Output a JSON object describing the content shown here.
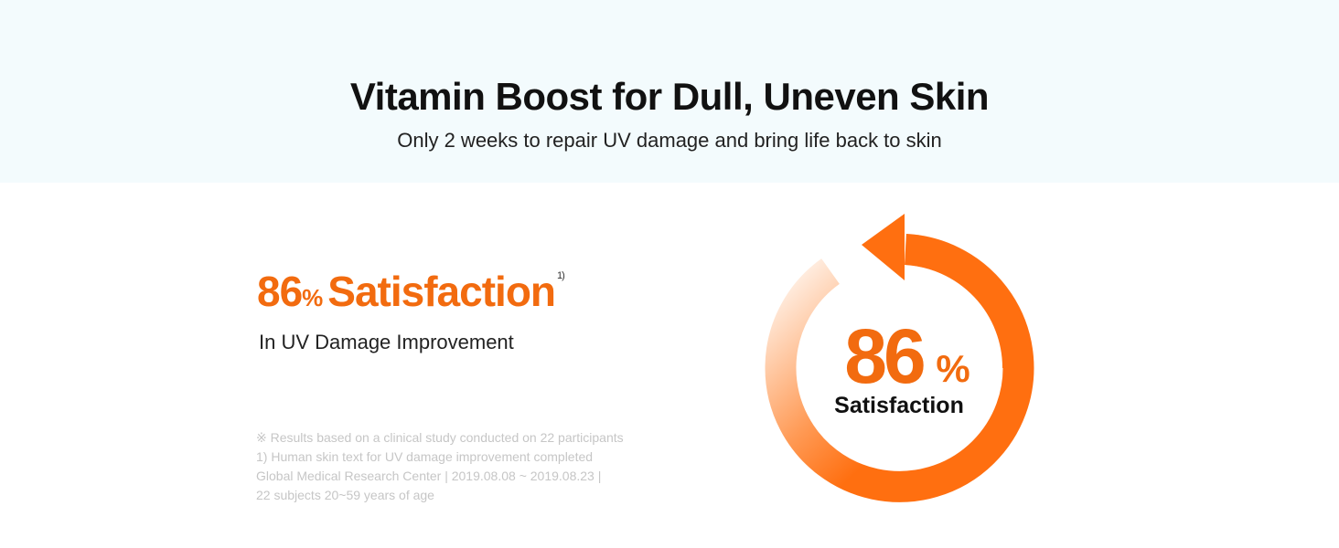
{
  "header": {
    "title": "Vitamin Boost for Dull, Uneven Skin",
    "subtitle": "Only 2 weeks to repair UV damage and bring life back to skin"
  },
  "stat": {
    "value": "86",
    "unit": "%",
    "label": "Satisfaction",
    "footnote_ref": "1)",
    "description": "In UV Damage Improvement"
  },
  "notes": [
    "※ Results based on a clinical study conducted on 22 participants",
    "1) Human skin text for UV damage improvement completed",
    "Global Medical Research Center | 2019.08.08 ~ 2019.08.23 |",
    "22 subjects 20~59 years of age"
  ],
  "badge": {
    "value": "86",
    "unit": "%",
    "label": "Satisfaction"
  }
}
